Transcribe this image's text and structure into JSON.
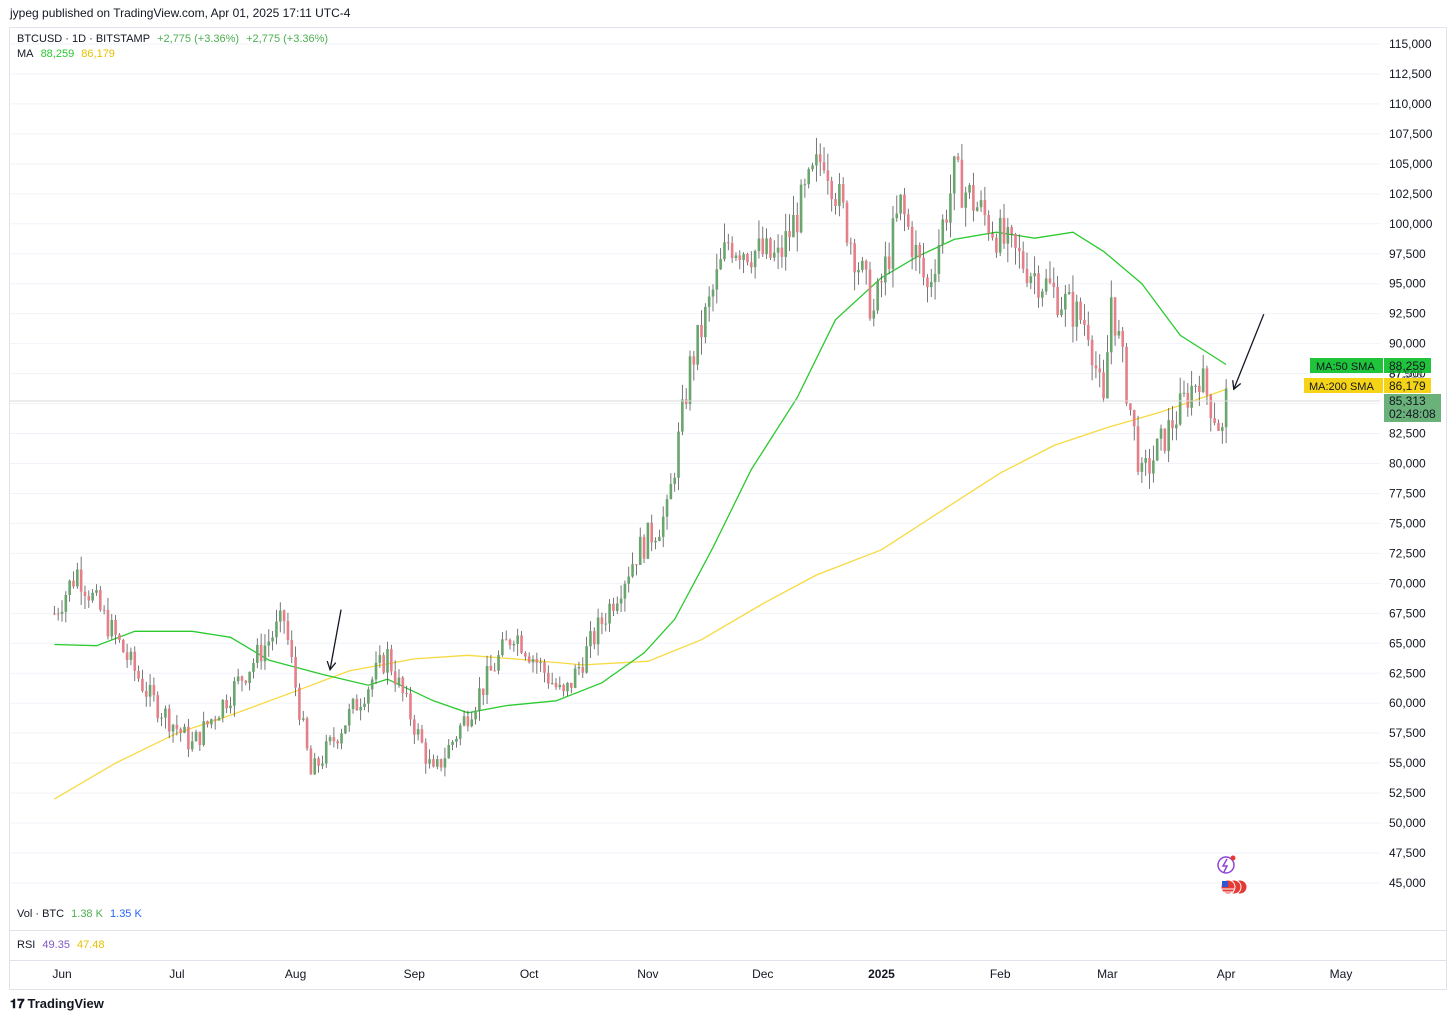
{
  "header": {
    "published": "jypeg published on TradingView.com, Apr 01, 2025 17:11 UTC-4"
  },
  "legend": {
    "symbol": "BTCUSD · 1D · BITSTAMP",
    "change1": "+2,775 (+3.36%)",
    "change2": "+2,775 (+3.36%)",
    "ma_label": "MA",
    "ma50_value": "88,259",
    "ma200_value": "86,179",
    "vol_label": "Vol · BTC",
    "vol_value1": "1.38 K",
    "vol_value2": "1.35 K",
    "rsi_label": "RSI",
    "rsi_value1": "49.35",
    "rsi_value2": "47.48"
  },
  "price_tags": {
    "ma50_name": "MA:50 SMA",
    "ma50_value": "88,259",
    "ma200_name": "MA:200 SMA",
    "ma200_value": "86,179",
    "last_price": "85,313",
    "countdown": "02:48:08",
    "hidden_tick": "87,500"
  },
  "footer": {
    "brand": "TradingView"
  },
  "colors": {
    "up": "#6aa56d",
    "down": "#e57f8a",
    "ma50": "#2bca2f",
    "ma200": "#f7d940",
    "last_price_bg": "#6bb27a",
    "legend_green": "#4caf50",
    "rsi_purple": "#7e57c2",
    "vol_blue": "#2962ff"
  },
  "chart_data": {
    "type": "candlestick",
    "symbol": "BTCUSD",
    "interval": "1D",
    "exchange": "BITSTAMP",
    "y_axis": {
      "ticks": [
        45000,
        47500,
        50000,
        52500,
        55000,
        57500,
        60000,
        62500,
        65000,
        67500,
        70000,
        72500,
        75000,
        77500,
        80000,
        82500,
        85000,
        87500,
        90000,
        92500,
        95000,
        97500,
        100000,
        102500,
        105000,
        107500,
        110000,
        112500,
        115000
      ],
      "tick_labels": [
        "45,000",
        "47,500",
        "50,000",
        "52,500",
        "55,000",
        "57,500",
        "60,000",
        "62,500",
        "65,000",
        "67,500",
        "70,000",
        "72,500",
        "75,000",
        "77,500",
        "80,000",
        "82,500",
        "85,000",
        "87,500",
        "90,000",
        "92,500",
        "95,000",
        "97,500",
        "100,000",
        "102,500",
        "105,000",
        "107,500",
        "110,000",
        "112,500",
        "115,000"
      ]
    },
    "x_axis": {
      "labels": [
        "Jun",
        "Jul",
        "Aug",
        "Sep",
        "Oct",
        "Nov",
        "Dec",
        "2025",
        "Feb",
        "Mar",
        "Apr",
        "May"
      ],
      "label_dates": [
        "2024-06-01",
        "2024-07-01",
        "2024-08-01",
        "2024-09-01",
        "2024-10-01",
        "2024-11-01",
        "2024-12-01",
        "2025-01-01",
        "2025-02-01",
        "2025-03-01",
        "2025-04-01",
        "2025-05-01"
      ]
    },
    "last_price": 85313,
    "ma50_last": 88259,
    "ma200_last": 86179,
    "key_prices": [
      {
        "date": "2024-05-30",
        "close": 67500
      },
      {
        "date": "2024-06-05",
        "close": 71000
      },
      {
        "date": "2024-06-24",
        "close": 60500
      },
      {
        "date": "2024-07-05",
        "close": 56500
      },
      {
        "date": "2024-07-29",
        "close": 67000
      },
      {
        "date": "2024-08-05",
        "close": 54000
      },
      {
        "date": "2024-08-25",
        "close": 64000
      },
      {
        "date": "2024-09-06",
        "close": 54000
      },
      {
        "date": "2024-09-27",
        "close": 66000
      },
      {
        "date": "2024-10-10",
        "close": 60500
      },
      {
        "date": "2024-10-29",
        "close": 72500
      },
      {
        "date": "2024-11-06",
        "close": 75800
      },
      {
        "date": "2024-11-12",
        "close": 88000
      },
      {
        "date": "2024-11-22",
        "close": 98500
      },
      {
        "date": "2024-12-05",
        "close": 97000
      },
      {
        "date": "2024-12-17",
        "close": 106000
      },
      {
        "date": "2024-12-30",
        "close": 92500
      },
      {
        "date": "2025-01-06",
        "close": 101500
      },
      {
        "date": "2025-01-13",
        "close": 94500
      },
      {
        "date": "2025-01-20",
        "close": 104000
      },
      {
        "date": "2025-02-03",
        "close": 98000
      },
      {
        "date": "2025-02-24",
        "close": 91500
      },
      {
        "date": "2025-02-28",
        "close": 84500
      },
      {
        "date": "2025-03-02",
        "close": 94000
      },
      {
        "date": "2025-03-10",
        "close": 78700
      },
      {
        "date": "2025-03-25",
        "close": 87500
      },
      {
        "date": "2025-03-31",
        "close": 82500
      },
      {
        "date": "2025-04-01",
        "close": 85313
      }
    ],
    "series": [
      {
        "name": "MA:50 SMA",
        "points": [
          {
            "date": "2024-05-30",
            "value": 64900
          },
          {
            "date": "2024-06-10",
            "value": 64800
          },
          {
            "date": "2024-06-20",
            "value": 66000
          },
          {
            "date": "2024-07-05",
            "value": 66000
          },
          {
            "date": "2024-07-15",
            "value": 65500
          },
          {
            "date": "2024-07-25",
            "value": 63600
          },
          {
            "date": "2024-08-08",
            "value": 62400
          },
          {
            "date": "2024-08-20",
            "value": 61500
          },
          {
            "date": "2024-08-25",
            "value": 62000
          },
          {
            "date": "2024-09-06",
            "value": 60200
          },
          {
            "date": "2024-09-15",
            "value": 59200
          },
          {
            "date": "2024-09-25",
            "value": 59800
          },
          {
            "date": "2024-10-08",
            "value": 60200
          },
          {
            "date": "2024-10-20",
            "value": 61700
          },
          {
            "date": "2024-10-31",
            "value": 64200
          },
          {
            "date": "2024-11-08",
            "value": 67000
          },
          {
            "date": "2024-11-18",
            "value": 73000
          },
          {
            "date": "2024-11-28",
            "value": 79500
          },
          {
            "date": "2024-12-10",
            "value": 85500
          },
          {
            "date": "2024-12-20",
            "value": 92000
          },
          {
            "date": "2025-01-01",
            "value": 95500
          },
          {
            "date": "2025-01-10",
            "value": 97200
          },
          {
            "date": "2025-01-20",
            "value": 98700
          },
          {
            "date": "2025-01-31",
            "value": 99300
          },
          {
            "date": "2025-02-10",
            "value": 98800
          },
          {
            "date": "2025-02-20",
            "value": 99300
          },
          {
            "date": "2025-02-28",
            "value": 97700
          },
          {
            "date": "2025-03-10",
            "value": 95000
          },
          {
            "date": "2025-03-20",
            "value": 90700
          },
          {
            "date": "2025-04-01",
            "value": 88259
          }
        ]
      },
      {
        "name": "MA:200 SMA",
        "points": [
          {
            "date": "2024-05-30",
            "value": 52000
          },
          {
            "date": "2024-06-15",
            "value": 55000
          },
          {
            "date": "2024-07-01",
            "value": 57500
          },
          {
            "date": "2024-07-15",
            "value": 59000
          },
          {
            "date": "2024-08-01",
            "value": 61000
          },
          {
            "date": "2024-08-15",
            "value": 62700
          },
          {
            "date": "2024-09-01",
            "value": 63700
          },
          {
            "date": "2024-09-15",
            "value": 64000
          },
          {
            "date": "2024-10-01",
            "value": 63600
          },
          {
            "date": "2024-10-15",
            "value": 63200
          },
          {
            "date": "2024-11-01",
            "value": 63500
          },
          {
            "date": "2024-11-15",
            "value": 65300
          },
          {
            "date": "2024-12-01",
            "value": 68300
          },
          {
            "date": "2024-12-15",
            "value": 70700
          },
          {
            "date": "2025-01-01",
            "value": 72800
          },
          {
            "date": "2025-01-15",
            "value": 75700
          },
          {
            "date": "2025-02-01",
            "value": 79200
          },
          {
            "date": "2025-02-15",
            "value": 81500
          },
          {
            "date": "2025-03-01",
            "value": 83000
          },
          {
            "date": "2025-03-15",
            "value": 84300
          },
          {
            "date": "2025-04-01",
            "value": 86179
          }
        ]
      }
    ],
    "annotations": [
      {
        "type": "arrow",
        "points_to": {
          "date": "2024-08-10",
          "value": 62800
        }
      },
      {
        "type": "arrow",
        "points_to": {
          "date": "2025-04-03",
          "value": 86200
        }
      }
    ]
  }
}
